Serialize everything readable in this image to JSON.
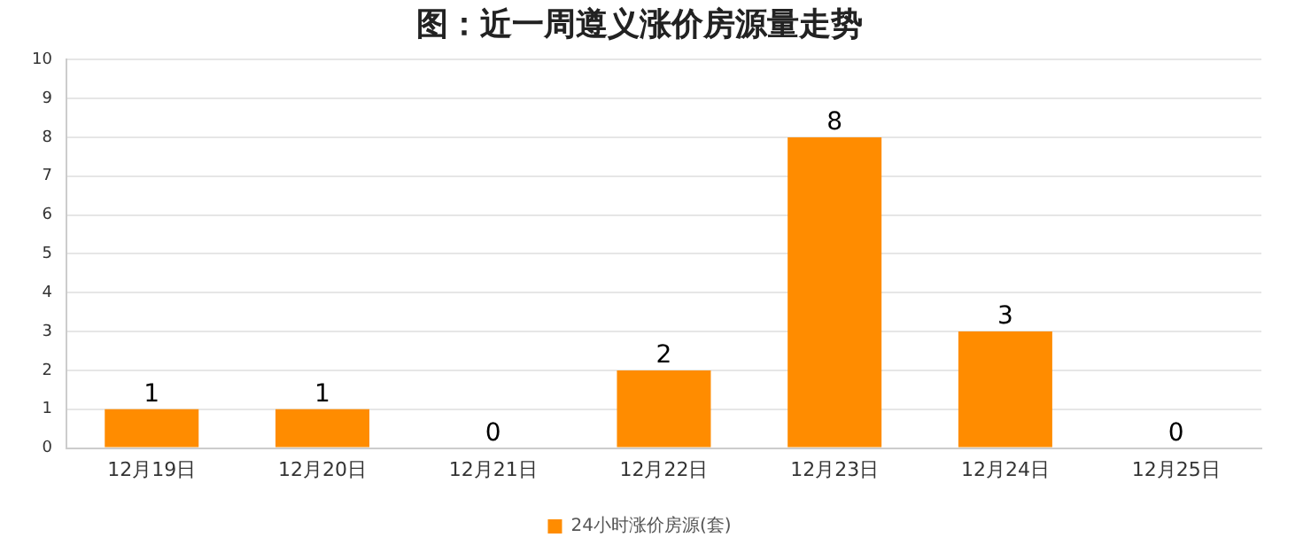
{
  "chart_data": {
    "type": "bar",
    "title": "图：近一周遵义涨价房源量走势",
    "categories": [
      "12月19日",
      "12月20日",
      "12月21日",
      "12月22日",
      "12月23日",
      "12月24日",
      "12月25日"
    ],
    "series": [
      {
        "name": "24小时涨价房源(套)",
        "color": "#ff8c00",
        "values": [
          1,
          1,
          0,
          2,
          8,
          3,
          0
        ]
      }
    ],
    "ylim": [
      0,
      10
    ],
    "yticks": [
      0,
      1,
      2,
      3,
      4,
      5,
      6,
      7,
      8,
      9,
      10
    ],
    "grid": "y",
    "legend": "bottom",
    "data_labels": true
  }
}
